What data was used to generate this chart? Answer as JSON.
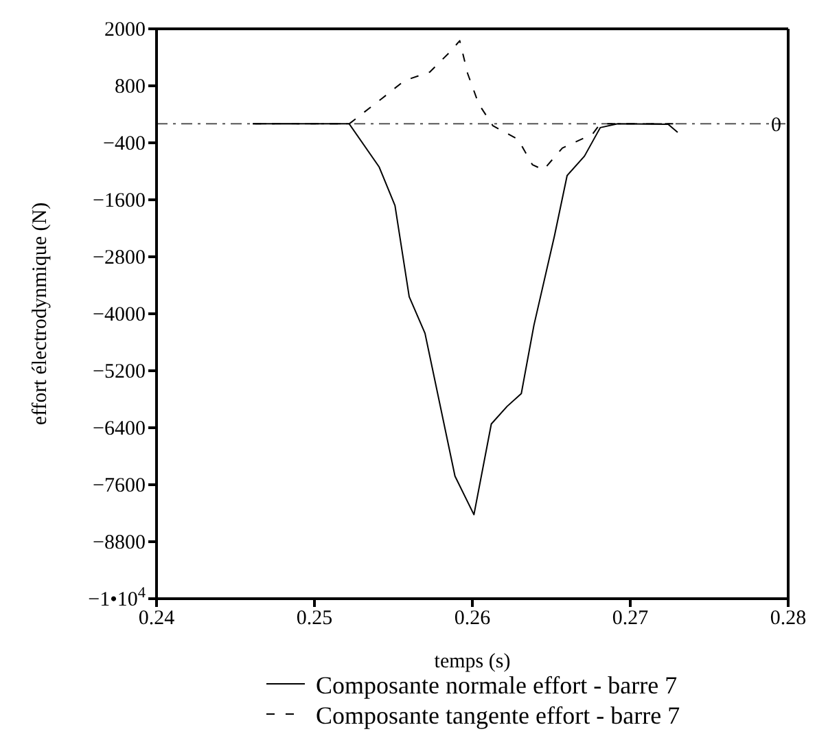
{
  "chart_data": {
    "type": "line",
    "xlabel": "temps (s)",
    "ylabel": "effort électrodynmique (N)",
    "xlim": [
      0.24,
      0.28
    ],
    "xticks": [
      0.24,
      0.25,
      0.26,
      0.27,
      0.28
    ],
    "ylim": [
      -10000,
      2000
    ],
    "yticks": [
      2000,
      800,
      {
        "value": -400,
        "label": "−400"
      },
      {
        "value": -1600,
        "label": "−1600"
      },
      {
        "value": -2800,
        "label": "−2800"
      },
      {
        "value": -4000,
        "label": "−4000"
      },
      {
        "value": -5200,
        "label": "−5200"
      },
      {
        "value": -6400,
        "label": "−6400"
      },
      {
        "value": -7600,
        "label": "−7600"
      },
      {
        "value": -8800,
        "label": "−8800"
      },
      {
        "value": -10000,
        "label": "−1•10$^{4}$"
      }
    ],
    "grid": false,
    "legend": "bottom",
    "marker": "none",
    "ref_lines": [
      {
        "axis": "y",
        "value": 0,
        "label": "0",
        "color": "#555555",
        "line_style": "dashed"
      }
    ],
    "series": [
      {
        "name": "Composante normale effort - barre 7",
        "color": "#000000",
        "line_style": "solid",
        "x": [
          0.2461,
          0.2522,
          0.2541,
          0.2551,
          0.256,
          0.257,
          0.2589,
          0.2601,
          0.2612,
          0.2622,
          0.2631,
          0.2639,
          0.2652,
          0.266,
          0.2671,
          0.2681,
          0.2692,
          0.2724,
          0.273
        ],
        "values": [
          0,
          0,
          -910,
          -1720,
          -3640,
          -4410,
          -7420,
          -8230,
          -6320,
          -5950,
          -5680,
          -4240,
          -2360,
          -1090,
          -680,
          -80,
          0,
          -10,
          -180
        ]
      },
      {
        "name": "Composante tangente effort - barre 7",
        "color": "#000000",
        "line_style": "dashed",
        "x": [
          0.2461,
          0.2522,
          0.2543,
          0.2557,
          0.2573,
          0.2586,
          0.2592,
          0.2597,
          0.2604,
          0.2613,
          0.2629,
          0.2638,
          0.2645,
          0.2657,
          0.2676,
          0.2681,
          0.273
        ],
        "values": [
          0,
          0,
          540,
          910,
          1090,
          1520,
          1750,
          1060,
          420,
          -40,
          -330,
          -860,
          -970,
          -510,
          -220,
          0,
          0
        ]
      }
    ]
  }
}
